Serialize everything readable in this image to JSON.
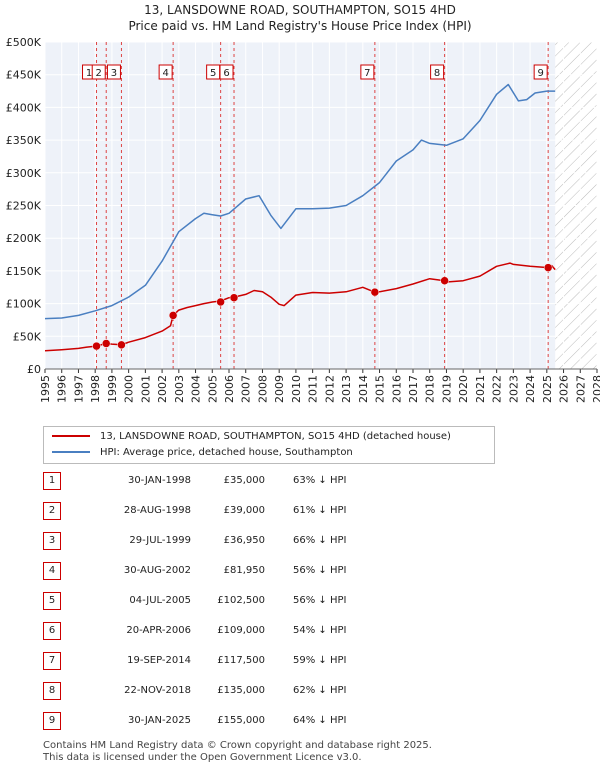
{
  "title_line1": "13, LANSDOWNE ROAD, SOUTHAMPTON, SO15 4HD",
  "title_line2": "Price paid vs. HM Land Registry's House Price Index (HPI)",
  "chart_data": {
    "type": "line",
    "title": "13, LANSDOWNE ROAD, SOUTHAMPTON, SO15 4HD — Price paid vs. HM Land Registry's House Price Index (HPI)",
    "xlim": [
      1995,
      2028
    ],
    "ylim": [
      0,
      500000
    ],
    "x_ticks": [
      1995,
      1996,
      1997,
      1998,
      1999,
      2000,
      2001,
      2002,
      2003,
      2004,
      2005,
      2006,
      2007,
      2008,
      2009,
      2010,
      2011,
      2012,
      2013,
      2014,
      2015,
      2016,
      2017,
      2018,
      2019,
      2020,
      2021,
      2022,
      2023,
      2024,
      2025,
      2026,
      2027,
      2028
    ],
    "y_ticks": [
      0,
      50000,
      100000,
      150000,
      200000,
      250000,
      300000,
      350000,
      400000,
      450000,
      500000
    ],
    "y_tick_labels": [
      "£0",
      "£50K",
      "£100K",
      "£150K",
      "£200K",
      "£250K",
      "£300K",
      "£350K",
      "£400K",
      "£450K",
      "£500K"
    ],
    "hatch_start": 2025.5,
    "series": [
      {
        "name": "13, LANSDOWNE ROAD, SOUTHAMPTON, SO15 4HD (detached house)",
        "color": "#cc0000",
        "x": [
          1995.0,
          1996.0,
          1997.0,
          1997.5,
          1998.08,
          1998.5,
          1998.66,
          1999.0,
          1999.57,
          2000.0,
          2001.0,
          2002.0,
          2002.5,
          2002.66,
          2003.0,
          2003.5,
          2004.0,
          2004.5,
          2005.0,
          2005.5,
          2006.0,
          2006.3,
          2007.0,
          2007.5,
          2008.0,
          2008.5,
          2009.0,
          2009.3,
          2010.0,
          2011.0,
          2012.0,
          2013.0,
          2014.0,
          2014.72,
          2015.0,
          2016.0,
          2017.0,
          2018.0,
          2018.89,
          2019.0,
          2020.0,
          2021.0,
          2022.0,
          2022.8,
          2023.0,
          2024.0,
          2025.08,
          2025.3,
          2025.5
        ],
        "y": [
          28000,
          29500,
          31500,
          33500,
          35000,
          38000,
          39000,
          38000,
          36950,
          41000,
          48000,
          58000,
          66000,
          81950,
          90000,
          94000,
          97000,
          100000,
          102500,
          104000,
          109000,
          110000,
          114000,
          120000,
          118000,
          110000,
          99000,
          97000,
          113000,
          117000,
          116000,
          118000,
          125000,
          117500,
          118000,
          123000,
          130000,
          138000,
          135000,
          133000,
          135000,
          142000,
          157000,
          162000,
          160000,
          157000,
          155000,
          158000,
          152000
        ]
      },
      {
        "name": "HPI: Average price, detached house, Southampton",
        "color": "#4a7fc1",
        "x": [
          1995.0,
          1996.0,
          1997.0,
          1998.0,
          1999.0,
          2000.0,
          2001.0,
          2002.0,
          2003.0,
          2004.0,
          2004.5,
          2005.0,
          2005.5,
          2006.0,
          2007.0,
          2007.8,
          2008.5,
          2009.1,
          2010.0,
          2011.0,
          2012.0,
          2013.0,
          2014.0,
          2015.0,
          2016.0,
          2017.0,
          2017.5,
          2018.0,
          2019.0,
          2020.0,
          2021.0,
          2022.0,
          2022.7,
          2023.3,
          2023.8,
          2024.3,
          2025.0,
          2025.5
        ],
        "y": [
          77000,
          78000,
          82000,
          89000,
          97000,
          110000,
          128000,
          165000,
          210000,
          230000,
          238000,
          236000,
          234000,
          238000,
          260000,
          265000,
          235000,
          215000,
          245000,
          245000,
          246000,
          250000,
          265000,
          285000,
          318000,
          335000,
          350000,
          345000,
          342000,
          352000,
          380000,
          420000,
          435000,
          410000,
          412000,
          422000,
          425000,
          425000
        ]
      }
    ],
    "sale_markers": [
      {
        "label": "1",
        "x": 1998.08,
        "y": 35000
      },
      {
        "label": "2",
        "x": 1998.66,
        "y": 39000
      },
      {
        "label": "3",
        "x": 1999.57,
        "y": 36950
      },
      {
        "label": "4",
        "x": 2002.66,
        "y": 81950
      },
      {
        "label": "5",
        "x": 2005.5,
        "y": 102500
      },
      {
        "label": "6",
        "x": 2006.3,
        "y": 109000
      },
      {
        "label": "7",
        "x": 2014.72,
        "y": 117500
      },
      {
        "label": "8",
        "x": 2018.89,
        "y": 135000
      },
      {
        "label": "9",
        "x": 2025.08,
        "y": 155000
      }
    ]
  },
  "legend": {
    "item1": "13, LANSDOWNE ROAD, SOUTHAMPTON, SO15 4HD (detached house)",
    "item2": "HPI: Average price, detached house, Southampton",
    "color1": "#cc0000",
    "color2": "#4a7fc1"
  },
  "transactions": [
    {
      "num": "1",
      "date": "30-JAN-1998",
      "price": "£35,000",
      "hpi": "63% ↓ HPI"
    },
    {
      "num": "2",
      "date": "28-AUG-1998",
      "price": "£39,000",
      "hpi": "61% ↓ HPI"
    },
    {
      "num": "3",
      "date": "29-JUL-1999",
      "price": "£36,950",
      "hpi": "66% ↓ HPI"
    },
    {
      "num": "4",
      "date": "30-AUG-2002",
      "price": "£81,950",
      "hpi": "56% ↓ HPI"
    },
    {
      "num": "5",
      "date": "04-JUL-2005",
      "price": "£102,500",
      "hpi": "56% ↓ HPI"
    },
    {
      "num": "6",
      "date": "20-APR-2006",
      "price": "£109,000",
      "hpi": "54% ↓ HPI"
    },
    {
      "num": "7",
      "date": "19-SEP-2014",
      "price": "£117,500",
      "hpi": "59% ↓ HPI"
    },
    {
      "num": "8",
      "date": "22-NOV-2018",
      "price": "£135,000",
      "hpi": "62% ↓ HPI"
    },
    {
      "num": "9",
      "date": "30-JAN-2025",
      "price": "£155,000",
      "hpi": "64% ↓ HPI"
    }
  ],
  "footer_line1": "Contains HM Land Registry data © Crown copyright and database right 2025.",
  "footer_line2": "This data is licensed under the Open Government Licence v3.0."
}
